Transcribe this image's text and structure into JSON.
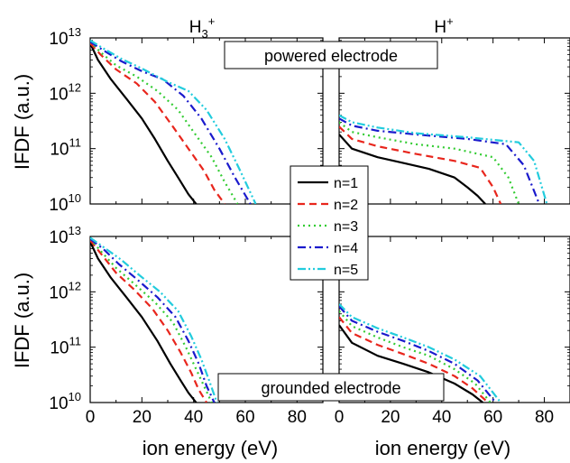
{
  "figure": {
    "col_titles": [
      {
        "base": "H",
        "sub": "3",
        "sup": "+"
      },
      {
        "base": "H",
        "sub": "",
        "sup": "+"
      }
    ],
    "row_labels": [
      "powered electrode",
      "grounded electrode"
    ],
    "ylabel": "IFDF (a.u.)",
    "xlabel": "ion energy (eV)",
    "y_tick_labels": [
      {
        "base": "10",
        "exp": "13"
      },
      {
        "base": "10",
        "exp": "12"
      },
      {
        "base": "10",
        "exp": "11"
      },
      {
        "base": "10",
        "exp": "10"
      }
    ],
    "x_tick_labels": [
      "0",
      "20",
      "40",
      "60",
      "80"
    ]
  },
  "legend": {
    "entries": [
      {
        "label": "n=1",
        "color": "#000000",
        "dash": "solid"
      },
      {
        "label": "n=2",
        "color": "#e8261d",
        "dash": "dashed"
      },
      {
        "label": "n=3",
        "color": "#33cc33",
        "dash": "dotted"
      },
      {
        "label": "n=4",
        "color": "#1a1acc",
        "dash": "dashdot"
      },
      {
        "label": "n=5",
        "color": "#22ccdd",
        "dash": "dashdotdot"
      }
    ]
  },
  "chart_data": [
    {
      "type": "line",
      "panel": "powered electrode, H3+",
      "title": "powered electrode",
      "xlabel": "ion energy (eV)",
      "ylabel": "IFDF (a.u.)",
      "xlim": [
        0,
        90
      ],
      "ylim": [
        10000000000.0,
        10000000000000.0
      ],
      "yscale": "log",
      "series": [
        {
          "name": "n=1",
          "x": [
            0,
            3,
            8,
            14,
            20,
            25,
            30,
            34,
            38,
            41
          ],
          "y": [
            8000000000000.0,
            4000000000000.0,
            1800000000000.0,
            800000000000.0,
            350000000000.0,
            150000000000.0,
            60000000000.0,
            30000000000.0,
            15000000000.0,
            10000000000.0
          ]
        },
        {
          "name": "n=2",
          "x": [
            0,
            4,
            10,
            18,
            25,
            32,
            38,
            44,
            48,
            52
          ],
          "y": [
            8000000000000.0,
            5000000000000.0,
            2700000000000.0,
            1500000000000.0,
            700000000000.0,
            250000000000.0,
            100000000000.0,
            40000000000.0,
            18000000000.0,
            10000000000.0
          ]
        },
        {
          "name": "n=3",
          "x": [
            0,
            4,
            10,
            18,
            26,
            34,
            40,
            47,
            52,
            57
          ],
          "y": [
            8500000000000.0,
            5500000000000.0,
            3200000000000.0,
            2000000000000.0,
            1100000000000.0,
            500000000000.0,
            200000000000.0,
            70000000000.0,
            25000000000.0,
            10000000000.0
          ]
        },
        {
          "name": "n=4",
          "x": [
            0,
            5,
            12,
            20,
            28,
            36,
            43,
            50,
            56,
            62
          ],
          "y": [
            8500000000000.0,
            6000000000000.0,
            3800000000000.0,
            2500000000000.0,
            1800000000000.0,
            900000000000.0,
            350000000000.0,
            100000000000.0,
            30000000000.0,
            10000000000.0
          ]
        },
        {
          "name": "n=5",
          "x": [
            0,
            5,
            12,
            20,
            30,
            38,
            45,
            52,
            58,
            64
          ],
          "y": [
            9000000000000.0,
            6500000000000.0,
            4200000000000.0,
            2800000000000.0,
            1600000000000.0,
            1100000000000.0,
            500000000000.0,
            150000000000.0,
            40000000000.0,
            10000000000.0
          ]
        }
      ]
    },
    {
      "type": "line",
      "panel": "powered electrode, H+",
      "title": "powered electrode",
      "xlabel": "ion energy (eV)",
      "ylabel": "IFDF (a.u.)",
      "xlim": [
        0,
        90
      ],
      "ylim": [
        10000000000.0,
        10000000000000.0
      ],
      "yscale": "log",
      "series": [
        {
          "name": "n=1",
          "x": [
            0,
            5,
            15,
            25,
            35,
            45,
            50,
            54,
            57
          ],
          "y": [
            180000000000.0,
            100000000000.0,
            70000000000.0,
            55000000000.0,
            43000000000.0,
            30000000000.0,
            20000000000.0,
            14000000000.0,
            10000000000.0
          ]
        },
        {
          "name": "n=2",
          "x": [
            0,
            5,
            15,
            30,
            45,
            55,
            60,
            63
          ],
          "y": [
            250000000000.0,
            150000000000.0,
            110000000000.0,
            80000000000.0,
            60000000000.0,
            45000000000.0,
            20000000000.0,
            10000000000.0
          ]
        },
        {
          "name": "n=3",
          "x": [
            0,
            5,
            15,
            30,
            45,
            60,
            66,
            70
          ],
          "y": [
            300000000000.0,
            200000000000.0,
            160000000000.0,
            120000000000.0,
            100000000000.0,
            70000000000.0,
            30000000000.0,
            10000000000.0
          ]
        },
        {
          "name": "n=4",
          "x": [
            0,
            5,
            15,
            30,
            50,
            65,
            72,
            78
          ],
          "y": [
            350000000000.0,
            260000000000.0,
            210000000000.0,
            180000000000.0,
            150000000000.0,
            120000000000.0,
            50000000000.0,
            10000000000.0
          ]
        },
        {
          "name": "n=5",
          "x": [
            0,
            5,
            15,
            30,
            50,
            70,
            76,
            81
          ],
          "y": [
            400000000000.0,
            300000000000.0,
            240000000000.0,
            190000000000.0,
            160000000000.0,
            130000000000.0,
            60000000000.0,
            10000000000.0
          ]
        }
      ]
    },
    {
      "type": "line",
      "panel": "grounded electrode, H3+",
      "title": "grounded electrode",
      "xlabel": "ion energy (eV)",
      "ylabel": "IFDF (a.u.)",
      "xlim": [
        0,
        90
      ],
      "ylim": [
        10000000000.0,
        10000000000000.0
      ],
      "yscale": "log",
      "series": [
        {
          "name": "n=1",
          "x": [
            0,
            3,
            8,
            14,
            20,
            26,
            31,
            35,
            38,
            41
          ],
          "y": [
            8000000000000.0,
            4000000000000.0,
            1800000000000.0,
            800000000000.0,
            350000000000.0,
            130000000000.0,
            50000000000.0,
            25000000000.0,
            15000000000.0,
            10000000000.0
          ]
        },
        {
          "name": "n=2",
          "x": [
            0,
            4,
            10,
            17,
            24,
            30,
            35,
            39,
            42,
            45
          ],
          "y": [
            8500000000000.0,
            5000000000000.0,
            2200000000000.0,
            1100000000000.0,
            500000000000.0,
            200000000000.0,
            80000000000.0,
            35000000000.0,
            17000000000.0,
            10000000000.0
          ]
        },
        {
          "name": "n=3",
          "x": [
            0,
            4,
            10,
            17,
            25,
            32,
            37,
            41,
            44,
            47
          ],
          "y": [
            9000000000000.0,
            5500000000000.0,
            2700000000000.0,
            1400000000000.0,
            650000000000.0,
            280000000000.0,
            100000000000.0,
            40000000000.0,
            20000000000.0,
            10000000000.0
          ]
        },
        {
          "name": "n=4",
          "x": [
            0,
            5,
            11,
            18,
            26,
            33,
            38,
            42,
            45,
            48
          ],
          "y": [
            9000000000000.0,
            6000000000000.0,
            3200000000000.0,
            1700000000000.0,
            800000000000.0,
            350000000000.0,
            130000000000.0,
            50000000000.0,
            20000000000.0,
            10000000000.0
          ]
        },
        {
          "name": "n=5",
          "x": [
            0,
            5,
            12,
            19,
            27,
            34,
            39,
            43,
            46,
            49
          ],
          "y": [
            9500000000000.0,
            6500000000000.0,
            3800000000000.0,
            2000000000000.0,
            1000000000000.0,
            450000000000.0,
            160000000000.0,
            60000000000.0,
            25000000000.0,
            10000000000.0
          ]
        }
      ]
    },
    {
      "type": "line",
      "panel": "grounded electrode, H+",
      "title": "grounded electrode",
      "xlabel": "ion energy (eV)",
      "ylabel": "IFDF (a.u.)",
      "xlim": [
        0,
        90
      ],
      "ylim": [
        10000000000.0,
        10000000000000.0
      ],
      "yscale": "log",
      "series": [
        {
          "name": "n=1",
          "x": [
            0,
            5,
            15,
            25,
            35,
            45,
            52,
            56
          ],
          "y": [
            250000000000.0,
            120000000000.0,
            70000000000.0,
            50000000000.0,
            35000000000.0,
            22000000000.0,
            14000000000.0,
            10000000000.0
          ]
        },
        {
          "name": "n=2",
          "x": [
            0,
            5,
            15,
            25,
            35,
            45,
            52,
            58
          ],
          "y": [
            350000000000.0,
            180000000000.0,
            110000000000.0,
            75000000000.0,
            50000000000.0,
            30000000000.0,
            18000000000.0,
            10000000000.0
          ]
        },
        {
          "name": "n=3",
          "x": [
            0,
            5,
            15,
            25,
            35,
            45,
            53,
            59
          ],
          "y": [
            450000000000.0,
            240000000000.0,
            150000000000.0,
            100000000000.0,
            70000000000.0,
            40000000000.0,
            22000000000.0,
            10000000000.0
          ]
        },
        {
          "name": "n=4",
          "x": [
            0,
            5,
            15,
            25,
            35,
            45,
            54,
            61
          ],
          "y": [
            550000000000.0,
            300000000000.0,
            190000000000.0,
            130000000000.0,
            85000000000.0,
            50000000000.0,
            25000000000.0,
            10000000000.0
          ]
        },
        {
          "name": "n=5",
          "x": [
            0,
            5,
            15,
            25,
            35,
            45,
            55,
            63
          ],
          "y": [
            600000000000.0,
            350000000000.0,
            220000000000.0,
            150000000000.0,
            100000000000.0,
            60000000000.0,
            30000000000.0,
            10000000000.0
          ]
        }
      ]
    }
  ]
}
